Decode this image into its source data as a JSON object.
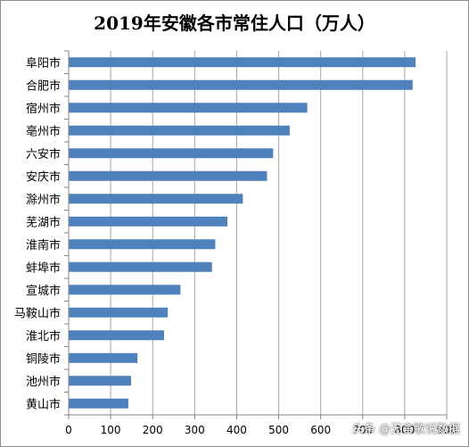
{
  "chart_data": {
    "type": "bar",
    "orientation": "horizontal",
    "title": "2019年安徽各市常住人口（万人）",
    "xlabel": "",
    "ylabel": "",
    "categories": [
      "阜阳市",
      "合肥市",
      "宿州市",
      "亳州市",
      "六安市",
      "安庆市",
      "滁州市",
      "芜湖市",
      "淮南市",
      "蚌埠市",
      "宣城市",
      "马鞍山市",
      "淮北市",
      "铜陵市",
      "池州市",
      "黄山市"
    ],
    "values": [
      825.9,
      818.9,
      568.1,
      526.3,
      486.8,
      472.3,
      414.7,
      377.8,
      349.0,
      341.2,
      266.1,
      236.0,
      227.1,
      163.8,
      148.6,
      142.1
    ],
    "xlim": [
      0,
      900
    ],
    "xticks": [
      0,
      100,
      200,
      300,
      400,
      500,
      600,
      700,
      800,
      900
    ],
    "grid": "vertical",
    "legend": "none",
    "bar_color": "#4f81bd",
    "grid_color": "#a6a6a6"
  },
  "watermark": "头条 @无言歌说数据"
}
